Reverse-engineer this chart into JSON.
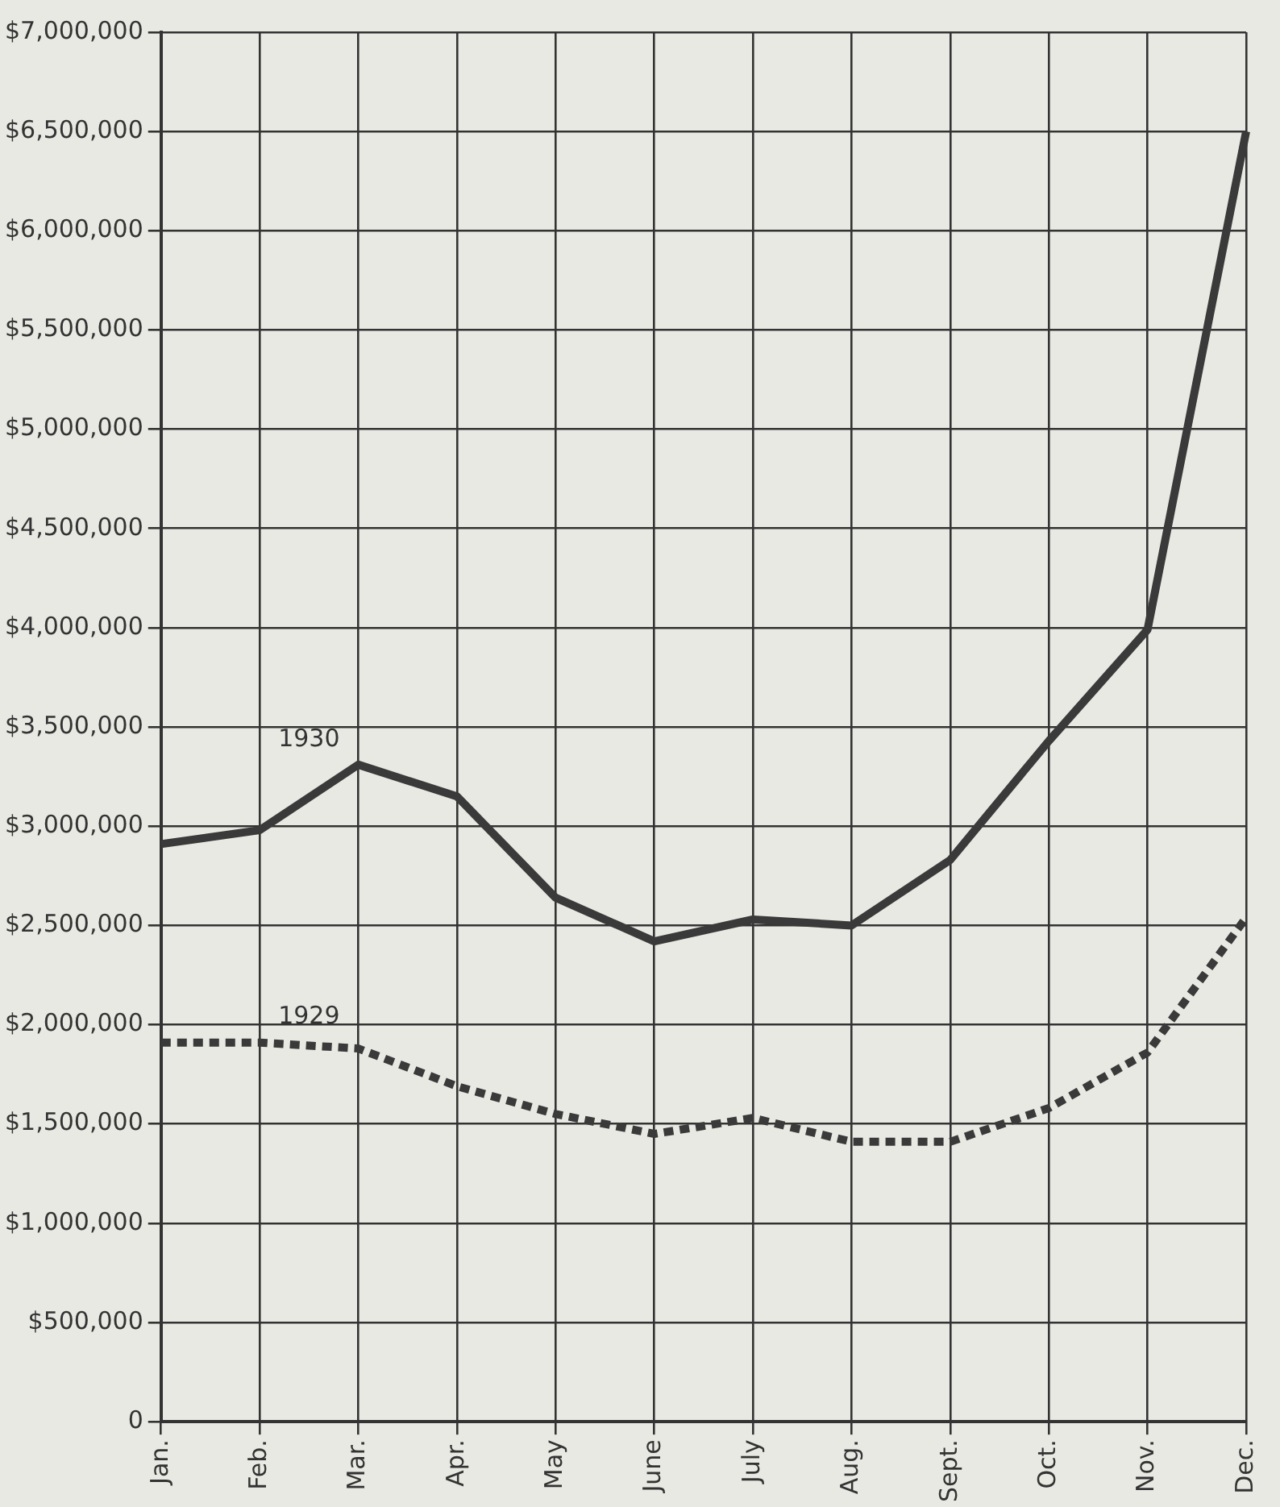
{
  "chart_data": {
    "type": "line",
    "categories": [
      "Jan.",
      "Feb.",
      "Mar.",
      "Apr.",
      "May",
      "June",
      "July",
      "Aug.",
      "Sept.",
      "Oct.",
      "Nov.",
      "Dec."
    ],
    "series": [
      {
        "name": "1930",
        "color": "#3a3a3a",
        "line_style": "solid",
        "values": [
          2910000,
          2980000,
          3310000,
          3150000,
          2640000,
          2420000,
          2530000,
          2500000,
          2830000,
          3430000,
          3990000,
          6500000
        ]
      },
      {
        "name": "1929",
        "color": "#3a3a3a",
        "line_style": "dotted",
        "values": [
          1910000,
          1910000,
          1880000,
          1690000,
          1550000,
          1450000,
          1530000,
          1410000,
          1410000,
          1580000,
          1860000,
          2540000
        ]
      }
    ],
    "ylim": [
      0,
      7000000
    ],
    "yticks": [
      0,
      {
        "value": 500000,
        "label": "$500,000"
      },
      {
        "value": 1000000,
        "label": "$1,000,000"
      },
      {
        "value": 1500000,
        "label": "$1,500,000"
      },
      {
        "value": 2000000,
        "label": "$2,000,000"
      },
      {
        "value": 2500000,
        "label": "$2,500,000"
      },
      {
        "value": 3000000,
        "label": "$3,000,000"
      },
      {
        "value": 3500000,
        "label": "$3,500,000"
      },
      {
        "value": 4000000,
        "label": "$4,000,000"
      },
      {
        "value": 4500000,
        "label": "$4,500,000"
      },
      {
        "value": 5000000,
        "label": "$5,000,000"
      },
      {
        "value": 5500000,
        "label": "$5,500,000"
      },
      {
        "value": 6000000,
        "label": "$6,000,000"
      },
      {
        "value": 6500000,
        "label": "$6,500,000"
      },
      {
        "value": 7000000,
        "label": "$7,000,000"
      }
    ],
    "grid": true,
    "legend": false,
    "marker": "none"
  }
}
